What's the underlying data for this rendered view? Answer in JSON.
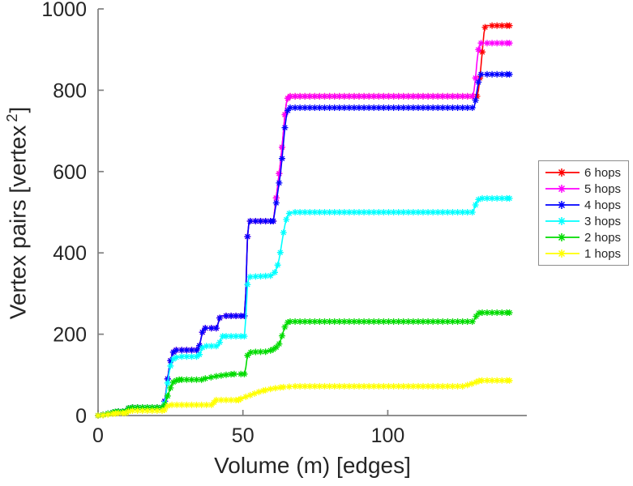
{
  "figure": {
    "background": "#ffffff",
    "axis_color": "#7f7f7f",
    "text_color": "#262626",
    "xlabel": "Volume (m) [edges]",
    "ylabel_pre": "Vertex pairs [vertex",
    "ylabel_sup": "2",
    "ylabel_post": "]"
  },
  "chart_data": {
    "type": "line",
    "title": "",
    "xlabel": "Volume (m) [edges]",
    "ylabel": "Vertex pairs [vertex^2]",
    "xlim": [
      0,
      148
    ],
    "ylim": [
      0,
      1000
    ],
    "x_ticks": [
      0,
      50,
      100
    ],
    "y_ticks": [
      0,
      200,
      400,
      600,
      800,
      1000
    ],
    "grid": false,
    "marker": "asterisk",
    "legend_position": "right-outside",
    "series": [
      {
        "name": "6 hops",
        "color": "#ff0000",
        "points": [
          [
            0,
            0
          ],
          [
            2,
            2
          ],
          [
            4,
            6
          ],
          [
            6,
            9
          ],
          [
            7,
            10
          ],
          [
            9.5,
            10
          ],
          [
            10.5,
            18
          ],
          [
            11,
            20
          ],
          [
            22.5,
            20
          ],
          [
            23,
            35
          ],
          [
            23.5,
            60
          ],
          [
            24,
            90
          ],
          [
            24.5,
            115
          ],
          [
            25,
            135
          ],
          [
            25.5,
            148
          ],
          [
            26,
            156
          ],
          [
            27,
            161
          ],
          [
            34.5,
            161
          ],
          [
            35,
            172
          ],
          [
            35.5,
            188
          ],
          [
            36,
            205
          ],
          [
            36.5,
            213
          ],
          [
            37,
            215
          ],
          [
            41,
            215
          ],
          [
            41.5,
            228
          ],
          [
            42,
            240
          ],
          [
            42.5,
            245
          ],
          [
            50.5,
            245
          ],
          [
            51,
            300
          ],
          [
            51.3,
            380
          ],
          [
            51.6,
            440
          ],
          [
            52,
            470
          ],
          [
            52.5,
            478
          ],
          [
            60.5,
            478
          ],
          [
            61,
            505
          ],
          [
            61.5,
            535
          ],
          [
            62,
            565
          ],
          [
            62.5,
            595
          ],
          [
            63,
            625
          ],
          [
            63.5,
            660
          ],
          [
            64,
            700
          ],
          [
            64.5,
            740
          ],
          [
            65,
            768
          ],
          [
            65.5,
            780
          ],
          [
            66,
            785
          ],
          [
            130.8,
            785
          ],
          [
            131.3,
            800
          ],
          [
            131.8,
            830
          ],
          [
            132.3,
            870
          ],
          [
            132.8,
            910
          ],
          [
            133.2,
            940
          ],
          [
            133.6,
            955
          ],
          [
            134,
            959
          ],
          [
            142,
            959
          ]
        ]
      },
      {
        "name": "5 hops",
        "color": "#ff00ff",
        "points": [
          [
            0,
            0
          ],
          [
            2,
            2
          ],
          [
            4,
            6
          ],
          [
            6,
            9
          ],
          [
            7,
            10
          ],
          [
            9.5,
            10
          ],
          [
            10.5,
            18
          ],
          [
            11,
            20
          ],
          [
            22.5,
            20
          ],
          [
            23,
            35
          ],
          [
            23.5,
            60
          ],
          [
            24,
            90
          ],
          [
            24.5,
            115
          ],
          [
            25,
            135
          ],
          [
            25.5,
            148
          ],
          [
            26,
            156
          ],
          [
            27,
            161
          ],
          [
            34.5,
            161
          ],
          [
            35,
            172
          ],
          [
            35.5,
            188
          ],
          [
            36,
            205
          ],
          [
            36.5,
            213
          ],
          [
            37,
            215
          ],
          [
            41,
            215
          ],
          [
            41.5,
            228
          ],
          [
            42,
            240
          ],
          [
            42.5,
            245
          ],
          [
            50.5,
            245
          ],
          [
            51,
            300
          ],
          [
            51.3,
            380
          ],
          [
            51.6,
            440
          ],
          [
            52,
            470
          ],
          [
            52.5,
            478
          ],
          [
            60.5,
            478
          ],
          [
            61,
            505
          ],
          [
            61.5,
            535
          ],
          [
            62,
            565
          ],
          [
            62.5,
            595
          ],
          [
            63,
            625
          ],
          [
            63.5,
            660
          ],
          [
            64,
            700
          ],
          [
            64.5,
            740
          ],
          [
            65,
            768
          ],
          [
            65.5,
            780
          ],
          [
            66,
            785
          ],
          [
            129.3,
            785
          ],
          [
            129.8,
            800
          ],
          [
            130.3,
            830
          ],
          [
            130.8,
            870
          ],
          [
            131.3,
            900
          ],
          [
            131.8,
            912
          ],
          [
            132.2,
            916
          ],
          [
            142,
            916
          ]
        ]
      },
      {
        "name": "4 hops",
        "color": "#0000ff",
        "points": [
          [
            0,
            0
          ],
          [
            2,
            2
          ],
          [
            4,
            6
          ],
          [
            6,
            9
          ],
          [
            7,
            10
          ],
          [
            9.5,
            10
          ],
          [
            10.5,
            18
          ],
          [
            11,
            20
          ],
          [
            22.5,
            20
          ],
          [
            23,
            35
          ],
          [
            23.5,
            60
          ],
          [
            24,
            90
          ],
          [
            24.5,
            115
          ],
          [
            25,
            135
          ],
          [
            25.5,
            148
          ],
          [
            26,
            156
          ],
          [
            27,
            161
          ],
          [
            34.5,
            161
          ],
          [
            35,
            172
          ],
          [
            35.5,
            188
          ],
          [
            36,
            205
          ],
          [
            36.5,
            213
          ],
          [
            37,
            215
          ],
          [
            41,
            215
          ],
          [
            41.5,
            228
          ],
          [
            42,
            240
          ],
          [
            42.5,
            245
          ],
          [
            50.5,
            245
          ],
          [
            51,
            300
          ],
          [
            51.3,
            380
          ],
          [
            51.6,
            440
          ],
          [
            52,
            470
          ],
          [
            52.5,
            478
          ],
          [
            60.5,
            478
          ],
          [
            61,
            500
          ],
          [
            61.5,
            523
          ],
          [
            62,
            548
          ],
          [
            62.5,
            572
          ],
          [
            63,
            598
          ],
          [
            63.5,
            632
          ],
          [
            64,
            672
          ],
          [
            64.5,
            708
          ],
          [
            65,
            735
          ],
          [
            65.5,
            750
          ],
          [
            66,
            757
          ],
          [
            129.8,
            757
          ],
          [
            130.3,
            775
          ],
          [
            130.8,
            798
          ],
          [
            131.3,
            820
          ],
          [
            131.8,
            833
          ],
          [
            132.2,
            839
          ],
          [
            142,
            839
          ]
        ]
      },
      {
        "name": "3 hops",
        "color": "#00ffff",
        "points": [
          [
            0,
            0
          ],
          [
            2,
            2
          ],
          [
            4,
            6
          ],
          [
            6,
            9
          ],
          [
            7,
            10
          ],
          [
            9.5,
            10
          ],
          [
            10.5,
            18
          ],
          [
            11,
            20
          ],
          [
            22.5,
            20
          ],
          [
            23,
            30
          ],
          [
            23.5,
            55
          ],
          [
            24,
            80
          ],
          [
            24.5,
            105
          ],
          [
            25,
            122
          ],
          [
            25.5,
            133
          ],
          [
            26,
            139
          ],
          [
            27,
            143
          ],
          [
            29,
            145
          ],
          [
            34.5,
            145
          ],
          [
            35,
            150
          ],
          [
            35.5,
            158
          ],
          [
            36,
            167
          ],
          [
            36.5,
            171
          ],
          [
            41.5,
            171
          ],
          [
            42,
            180
          ],
          [
            42.5,
            190
          ],
          [
            43,
            195
          ],
          [
            50.5,
            195
          ],
          [
            51,
            240
          ],
          [
            51.3,
            285
          ],
          [
            51.6,
            322
          ],
          [
            52,
            338
          ],
          [
            52.5,
            341
          ],
          [
            60,
            344
          ],
          [
            61,
            352
          ],
          [
            61.5,
            360
          ],
          [
            62,
            370
          ],
          [
            62.5,
            385
          ],
          [
            63,
            405
          ],
          [
            63.5,
            428
          ],
          [
            64,
            450
          ],
          [
            64.5,
            468
          ],
          [
            65,
            482
          ],
          [
            65.5,
            492
          ],
          [
            66,
            497
          ],
          [
            66.5,
            500
          ],
          [
            129.3,
            500
          ],
          [
            129.8,
            508
          ],
          [
            130.3,
            518
          ],
          [
            130.8,
            526
          ],
          [
            131.3,
            531
          ],
          [
            131.8,
            534
          ],
          [
            142,
            534
          ]
        ]
      },
      {
        "name": "2 hops",
        "color": "#00db00",
        "points": [
          [
            0,
            0
          ],
          [
            2,
            2
          ],
          [
            4,
            6
          ],
          [
            6,
            9
          ],
          [
            7,
            10
          ],
          [
            9.5,
            10
          ],
          [
            10.5,
            18
          ],
          [
            11,
            20
          ],
          [
            22.5,
            20
          ],
          [
            23,
            26
          ],
          [
            23.5,
            38
          ],
          [
            24,
            48
          ],
          [
            24.5,
            58
          ],
          [
            25,
            68
          ],
          [
            25.5,
            76
          ],
          [
            26,
            82
          ],
          [
            27,
            86
          ],
          [
            28,
            88
          ],
          [
            36,
            88
          ],
          [
            37,
            91
          ],
          [
            39,
            94
          ],
          [
            41,
            97
          ],
          [
            43,
            99
          ],
          [
            45,
            101
          ],
          [
            47,
            102
          ],
          [
            50.5,
            102
          ],
          [
            51,
            118
          ],
          [
            51.3,
            135
          ],
          [
            51.6,
            148
          ],
          [
            52,
            154
          ],
          [
            53,
            156
          ],
          [
            58,
            157
          ],
          [
            59.5,
            160
          ],
          [
            60.5,
            163
          ],
          [
            61.5,
            168
          ],
          [
            62.5,
            176
          ],
          [
            63,
            185
          ],
          [
            63.5,
            196
          ],
          [
            64,
            208
          ],
          [
            64.5,
            218
          ],
          [
            65,
            225
          ],
          [
            65.5,
            229
          ],
          [
            66,
            231
          ],
          [
            129.5,
            231
          ],
          [
            130,
            237
          ],
          [
            130.5,
            244
          ],
          [
            131,
            249
          ],
          [
            131.5,
            252
          ],
          [
            132,
            253
          ],
          [
            142,
            253
          ]
        ]
      },
      {
        "name": "1 hops",
        "color": "#ffff00",
        "points": [
          [
            0,
            0
          ],
          [
            2,
            1
          ],
          [
            4,
            3
          ],
          [
            6,
            5
          ],
          [
            7,
            6
          ],
          [
            9.5,
            6
          ],
          [
            10.5,
            10
          ],
          [
            11,
            12
          ],
          [
            22.5,
            12
          ],
          [
            23,
            14
          ],
          [
            23.5,
            19
          ],
          [
            24,
            24
          ],
          [
            24.5,
            26
          ],
          [
            39.5,
            26
          ],
          [
            40,
            32
          ],
          [
            40.5,
            38
          ],
          [
            48.5,
            38
          ],
          [
            49.5,
            42
          ],
          [
            51,
            46
          ],
          [
            52.5,
            50
          ],
          [
            54,
            54
          ],
          [
            55.5,
            58
          ],
          [
            57,
            61
          ],
          [
            58.5,
            64
          ],
          [
            60,
            66
          ],
          [
            62,
            68
          ],
          [
            64,
            70
          ],
          [
            66,
            71
          ],
          [
            68,
            72
          ],
          [
            126,
            72
          ],
          [
            127.5,
            75
          ],
          [
            129,
            78
          ],
          [
            130.5,
            82
          ],
          [
            131.5,
            85
          ],
          [
            132.5,
            86
          ],
          [
            142,
            86
          ]
        ]
      }
    ]
  }
}
